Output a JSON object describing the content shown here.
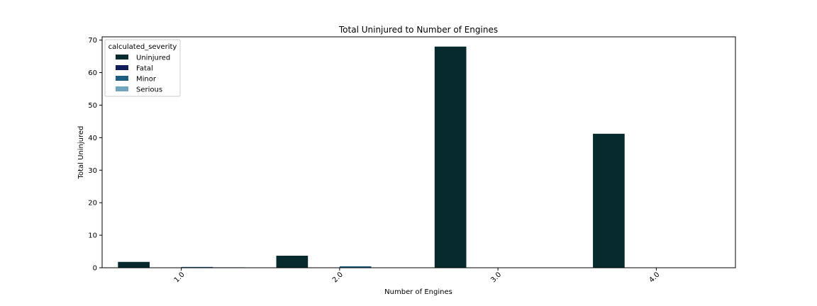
{
  "chart_data": {
    "type": "bar",
    "title": "Total Uninjured to  Number of Engines",
    "xlabel": "Number of Engines",
    "ylabel": "Total Uninjured",
    "categories": [
      "1.0",
      "2.0",
      "3.0",
      "4.0"
    ],
    "ylim": [
      0,
      71
    ],
    "yticks": [
      0,
      10,
      20,
      30,
      40,
      50,
      60,
      70
    ],
    "legend": {
      "title": "calculated_severity",
      "placement": "top-left"
    },
    "series": [
      {
        "name": "Uninjured",
        "color": "#062a2e",
        "values": [
          1.8,
          3.7,
          68,
          41.2
        ]
      },
      {
        "name": "Fatal",
        "color": "#0f1e5a",
        "values": [
          0,
          0,
          0,
          0
        ]
      },
      {
        "name": "Minor",
        "color": "#1a5f82",
        "values": [
          0.25,
          0.45,
          0,
          0
        ]
      },
      {
        "name": "Serious",
        "color": "#6fa6bf",
        "values": [
          0.15,
          0,
          0,
          0
        ]
      }
    ]
  }
}
